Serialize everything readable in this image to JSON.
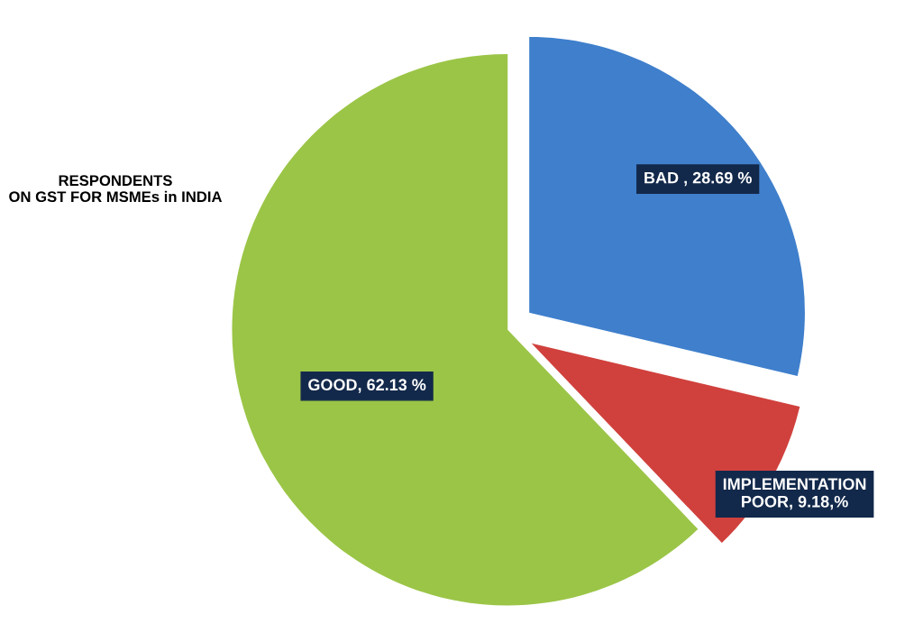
{
  "chart_data": {
    "type": "pie",
    "title": "RESPONDENTS\nON GST FOR MSMEs in INDIA",
    "categories": [
      "BAD , 28.69 %",
      "IMPLEMENTATION\nPOOR, 9.18,%",
      "GOOD, 62.13 %"
    ],
    "values": [
      28.69,
      9.18,
      62.13
    ],
    "colors": [
      "#3f7fcc",
      "#d0413d",
      "#9bc547"
    ],
    "legend": false
  }
}
